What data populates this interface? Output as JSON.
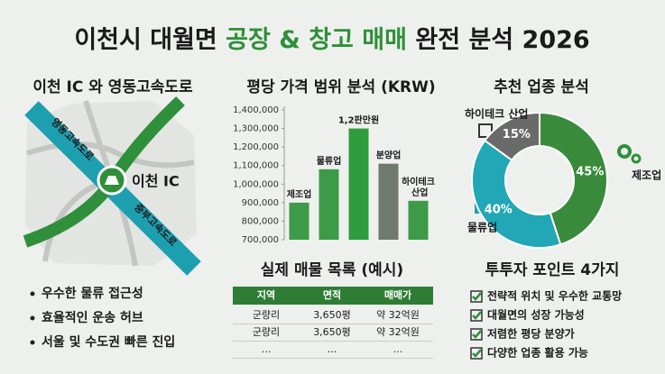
{
  "header": {
    "title_prefix": "이천시 대월면",
    "title_highlight": "공장 & 창고 매매",
    "title_suffix": "완전 분석 2026"
  },
  "map": {
    "title": "이천 IC 와 영동고속도로",
    "ic_label": "이천 IC",
    "road_a": "영동고속도로",
    "road_b": "중부고속도로"
  },
  "bullets": [
    "우수한 물류 접근성",
    "효율적인 운송 허브",
    "서울 및 수도권 빠른 진입"
  ],
  "chart_data": [
    {
      "type": "bar",
      "title": "평당 가격 범위 분석 (KRW)",
      "categories": [
        "제조업",
        "물류업",
        "1,2판만원",
        "분양업",
        "하이테크 산업"
      ],
      "values": [
        900000,
        1080000,
        1300000,
        1110000,
        910000
      ],
      "colors": [
        "#3d9a47",
        "#3d9a47",
        "#2f9c3d",
        "#6e7a6e",
        "#3d9a47"
      ],
      "ylim": [
        700000,
        1400000
      ],
      "yticks": [
        {
          "value": 700000,
          "label": "700,000"
        },
        {
          "value": 800000,
          "label": "800,000"
        },
        {
          "value": 900000,
          "label": "900,000"
        },
        {
          "value": 1000000,
          "label": "1,000,000"
        },
        {
          "value": 1100000,
          "label": "1,100,000"
        },
        {
          "value": 1200000,
          "label": "1,200,000"
        },
        {
          "value": 1300000,
          "label": "1,300,000"
        },
        {
          "value": 1400000,
          "label": "1,400,000"
        }
      ],
      "grid": false
    },
    {
      "type": "donut",
      "title": "추천 업종 분석",
      "categories": [
        "제조업",
        "물류업",
        "하이테크 산업"
      ],
      "values": [
        45,
        40,
        15
      ],
      "value_labels": [
        "45%",
        "40%",
        "15%"
      ],
      "colors": [
        "#3a8a3c",
        "#22a7b6",
        "#6a6a6a"
      ]
    }
  ],
  "table": {
    "title": "실제 매물 목록 (예시)",
    "header": [
      "지역",
      "면적",
      "매매가"
    ],
    "rows": [
      [
        "군량리",
        "3,650평",
        "약 32억원"
      ],
      [
        "군량리",
        "3,650평",
        "약 32억원"
      ],
      [
        "...",
        "...",
        "..."
      ]
    ]
  },
  "points": {
    "title": "투투자 포인트 4가지",
    "items": [
      "전략적 위치 및 우수한 교통망",
      "대월면의 성장 가능성",
      "저렴한 평당 분양가",
      "다양한 업종 활용 가능"
    ]
  }
}
